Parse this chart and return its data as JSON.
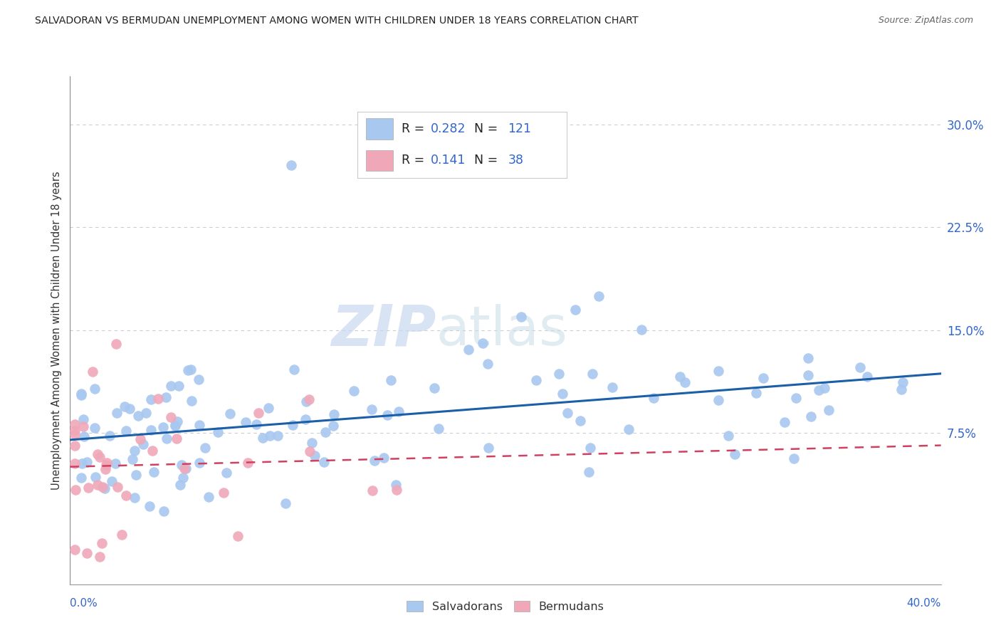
{
  "title": "SALVADORAN VS BERMUDAN UNEMPLOYMENT AMONG WOMEN WITH CHILDREN UNDER 18 YEARS CORRELATION CHART",
  "source": "Source: ZipAtlas.com",
  "ylabel": "Unemployment Among Women with Children Under 18 years",
  "ytick_values": [
    0.075,
    0.15,
    0.225,
    0.3
  ],
  "xlim": [
    0.0,
    0.4
  ],
  "ylim": [
    -0.035,
    0.335
  ],
  "color_salvadoran": "#a8c8f0",
  "color_bermudan": "#f0a8b8",
  "color_trendline_salvadoran": "#1a5fa8",
  "color_trendline_bermudan": "#d04060",
  "color_grid": "#cccccc",
  "watermark_zip": "ZIP",
  "watermark_atlas": "atlas",
  "background_color": "#ffffff",
  "title_fontsize": 10.5,
  "legend_color_blue": "#3366cc",
  "legend_color_black": "#222222"
}
